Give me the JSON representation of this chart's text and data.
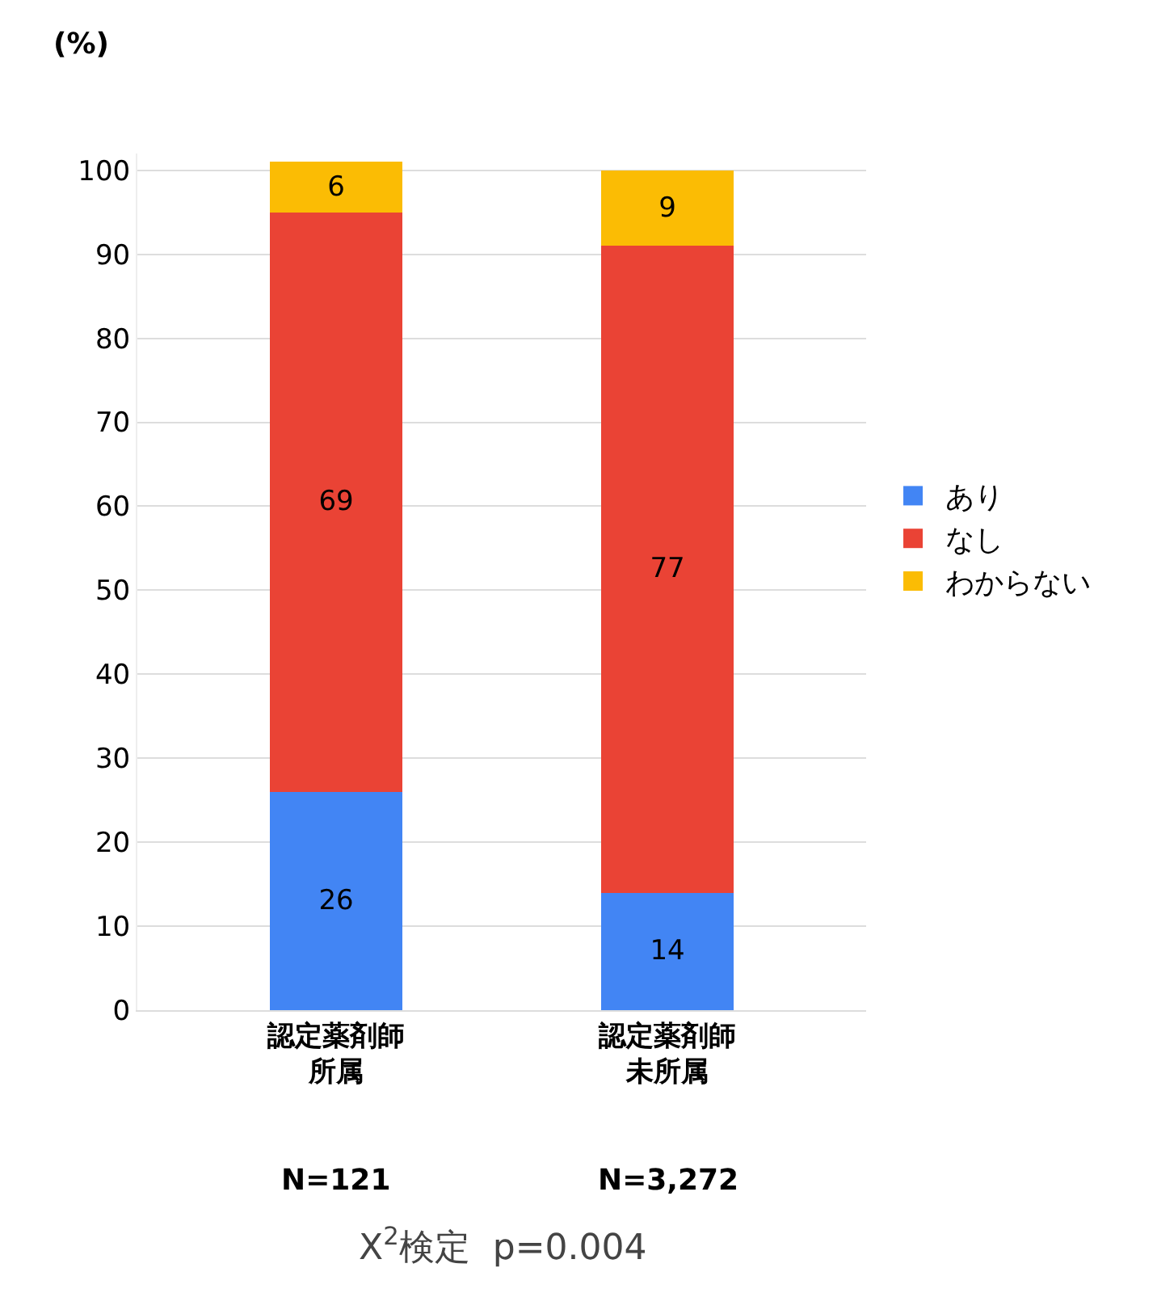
{
  "chart_data": {
    "type": "bar",
    "stacked": true,
    "ylabel": "(%)",
    "categories": [
      "認定薬剤師所属",
      "認定薬剤師未所属"
    ],
    "series": [
      {
        "name": "あり",
        "color": "#4285f4",
        "values": [
          26,
          14
        ]
      },
      {
        "name": "なし",
        "color": "#ea4335",
        "values": [
          69,
          77
        ]
      },
      {
        "name": "わからない",
        "color": "#fbbc04",
        "values": [
          6,
          9
        ]
      }
    ],
    "ylim": [
      0,
      102
    ],
    "yticks": [
      0,
      10,
      20,
      30,
      40,
      50,
      60,
      70,
      80,
      90,
      100
    ],
    "grid": "y",
    "legend": "right",
    "data_labels": true,
    "annotations": [
      "N=121",
      "N=3,272",
      "X$^{2}$検定  p=0.004"
    ]
  }
}
